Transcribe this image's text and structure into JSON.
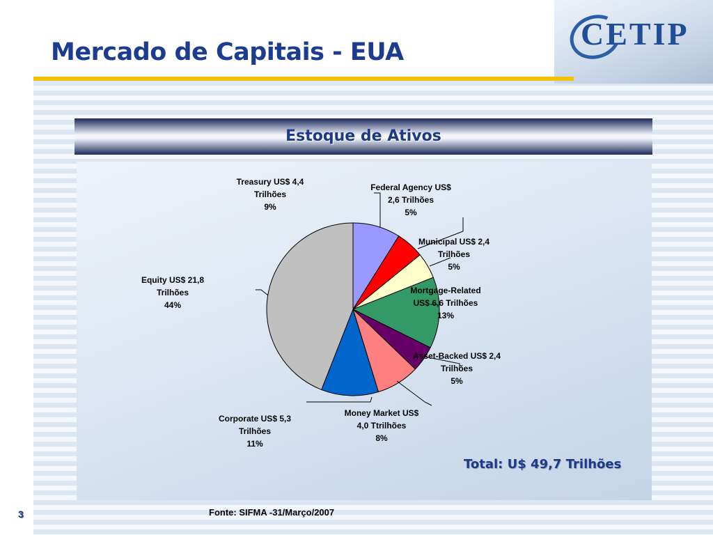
{
  "slide": {
    "title": "Mercado de Capitais - EUA",
    "logo_text": "CETIP",
    "page_number": "3"
  },
  "chart_data": {
    "type": "pie",
    "title": "Estoque de Ativos",
    "total": "Total: U$ 49,7 Trilhões",
    "source": "Fonte: SIFMA -31/Março/2007",
    "slices": [
      {
        "label": [
          "Treasury US$ 4,4",
          "Trilhões"
        ],
        "percent_label": "9%",
        "value": 4.4,
        "color": "#9999ff"
      },
      {
        "label": [
          "Federal Agency US$",
          "2,6 Trilhões"
        ],
        "percent_label": "5%",
        "value": 2.6,
        "color": "#ff0000"
      },
      {
        "label": [
          "Municipal US$ 2,4",
          "Trilhões"
        ],
        "percent_label": "5%",
        "value": 2.4,
        "color": "#ffffcc"
      },
      {
        "label": [
          "Mortgage-Related",
          "US$ 6,6 Trilhões"
        ],
        "percent_label": "13%",
        "value": 6.6,
        "color": "#339966"
      },
      {
        "label": [
          "Asset-Backed US$ 2,4",
          "Trilhões"
        ],
        "percent_label": "5%",
        "value": 2.4,
        "color": "#660066"
      },
      {
        "label": [
          "Money Market US$",
          "4,0 Ttrilhões"
        ],
        "percent_label": "8%",
        "value": 4.0,
        "color": "#ff8080"
      },
      {
        "label": [
          "Corporate US$ 5,3",
          "Trilhões"
        ],
        "percent_label": "11%",
        "value": 5.3,
        "color": "#0066cc"
      },
      {
        "label": [
          "Equity US$ 21,8",
          "Trilhões"
        ],
        "percent_label": "44%",
        "value": 21.8,
        "color": "#c0c0c0"
      }
    ]
  }
}
